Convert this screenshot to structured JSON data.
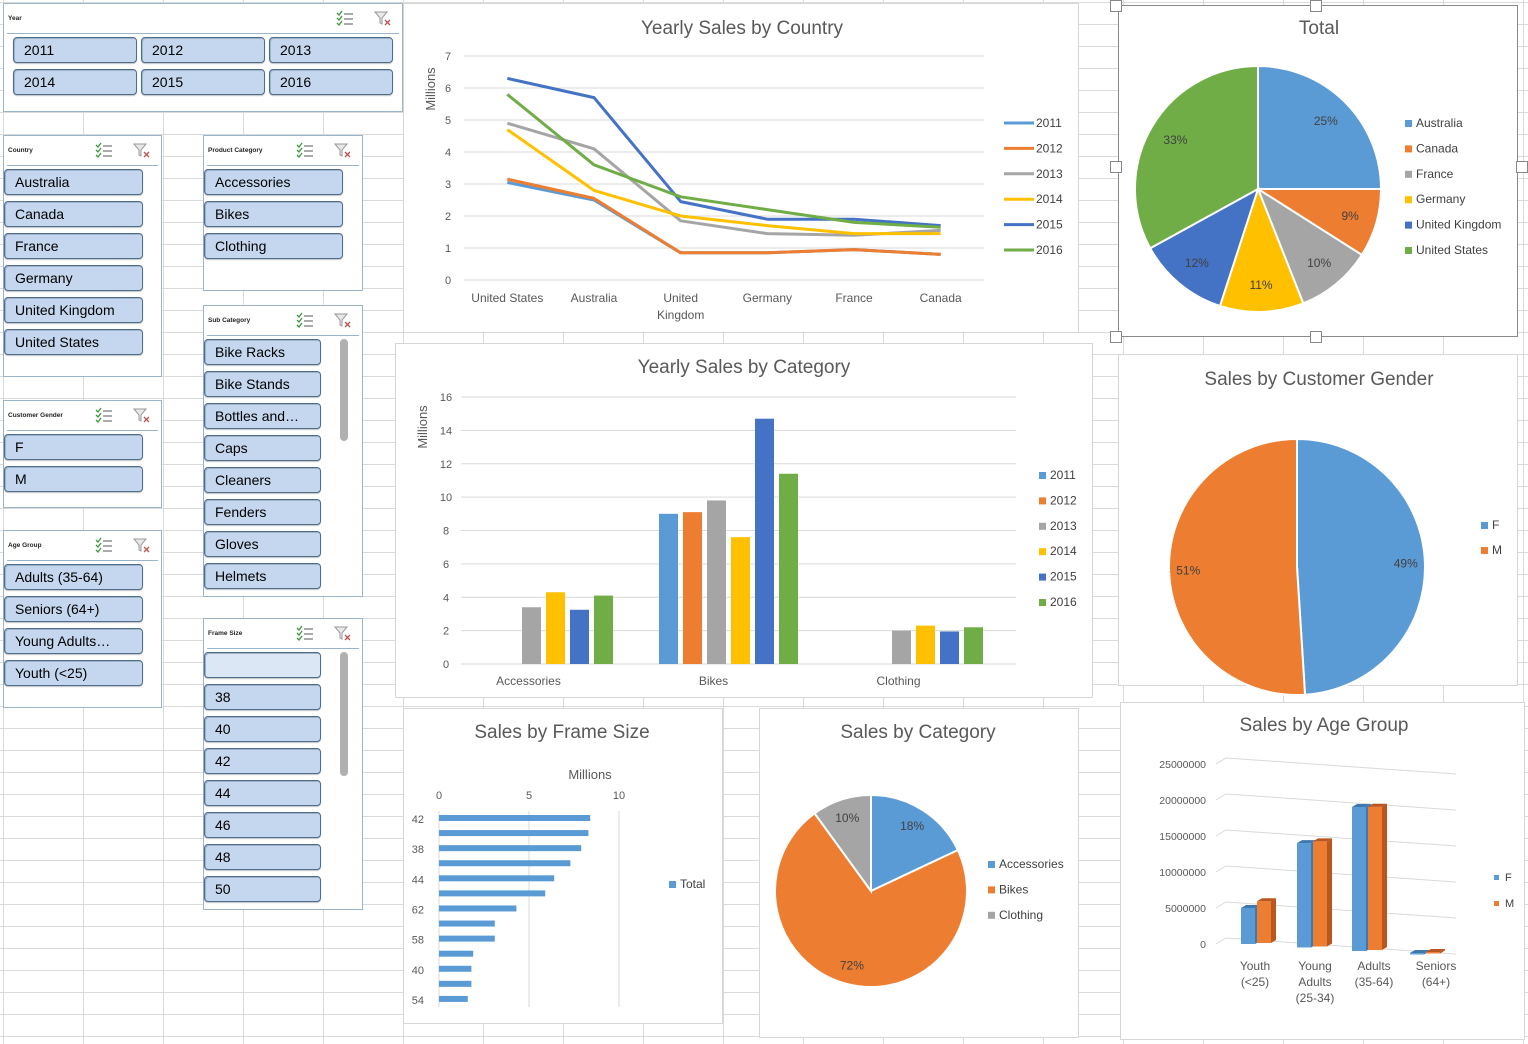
{
  "slicers": {
    "year": {
      "title": "Year",
      "items": [
        "2011",
        "2012",
        "2013",
        "2014",
        "2015",
        "2016"
      ]
    },
    "country": {
      "title": "Country",
      "items": [
        "Australia",
        "Canada",
        "France",
        "Germany",
        "United Kingdom",
        "United States"
      ]
    },
    "product_category": {
      "title": "Product Category",
      "items": [
        "Accessories",
        "Bikes",
        "Clothing"
      ]
    },
    "sub_category": {
      "title": "Sub Category",
      "items": [
        "Bike Racks",
        "Bike Stands",
        "Bottles and…",
        "Caps",
        "Cleaners",
        "Fenders",
        "Gloves",
        "Helmets"
      ]
    },
    "customer_gender": {
      "title": "Customer Gender",
      "items": [
        "F",
        "M"
      ]
    },
    "age_group": {
      "title": "Age Group",
      "items": [
        "Adults (35-64)",
        "Seniors (64+)",
        "Young Adults…",
        "Youth (<25)"
      ]
    },
    "frame_size": {
      "title": "Frame Size",
      "items": [
        "",
        "38",
        "40",
        "42",
        "44",
        "46",
        "48",
        "50"
      ]
    }
  },
  "colors": {
    "blue": "#5b9bd5",
    "orange": "#ed7d31",
    "gray": "#a5a5a5",
    "yellow": "#ffc000",
    "darkblue": "#4472c4",
    "green": "#70ad47",
    "slicer_button": "#c5d7ef",
    "slicer_border": "#4e6e8e"
  },
  "chart_data": [
    {
      "id": "yearly-sales-by-country",
      "type": "line",
      "title": "Yearly Sales by Country",
      "ylabel": "Millions",
      "ylim": [
        0,
        7
      ],
      "yticks": [
        "0",
        "1",
        "2",
        "3",
        "4",
        "5",
        "6",
        "7"
      ],
      "categories": [
        "United States",
        "Australia",
        "United Kingdom",
        "Germany",
        "France",
        "Canada"
      ],
      "category_labels": [
        [
          "United States"
        ],
        [
          "Australia"
        ],
        [
          "United",
          "Kingdom"
        ],
        [
          "Germany"
        ],
        [
          "France"
        ],
        [
          "Canada"
        ]
      ],
      "series": [
        {
          "name": "2011",
          "color": "#5b9bd5",
          "values": [
            3.05,
            2.5,
            0.85,
            0.85,
            0.95,
            0.8
          ]
        },
        {
          "name": "2012",
          "color": "#ed7d31",
          "values": [
            3.15,
            2.55,
            0.85,
            0.85,
            0.95,
            0.8
          ]
        },
        {
          "name": "2013",
          "color": "#a5a5a5",
          "values": [
            4.9,
            4.1,
            1.85,
            1.45,
            1.4,
            1.55
          ]
        },
        {
          "name": "2014",
          "color": "#ffc000",
          "values": [
            4.7,
            2.8,
            2.0,
            1.7,
            1.45,
            1.45
          ]
        },
        {
          "name": "2015",
          "color": "#4472c4",
          "values": [
            6.3,
            5.7,
            2.45,
            1.9,
            1.9,
            1.7
          ]
        },
        {
          "name": "2016",
          "color": "#70ad47",
          "values": [
            5.8,
            3.6,
            2.6,
            2.2,
            1.8,
            1.65
          ]
        }
      ],
      "legend": "right"
    },
    {
      "id": "total-by-country",
      "type": "pie",
      "title": "Total",
      "slices": [
        {
          "name": "Australia",
          "value": 25,
          "label": "25%",
          "color": "#5b9bd5"
        },
        {
          "name": "Canada",
          "value": 9,
          "label": "9%",
          "color": "#ed7d31"
        },
        {
          "name": "France",
          "value": 10,
          "label": "10%",
          "color": "#a5a5a5"
        },
        {
          "name": "Germany",
          "value": 11,
          "label": "11%",
          "color": "#ffc000"
        },
        {
          "name": "United Kingdom",
          "value": 12,
          "label": "12%",
          "color": "#4472c4"
        },
        {
          "name": "United States",
          "value": 33,
          "label": "33%",
          "color": "#70ad47"
        }
      ],
      "legend": "right"
    },
    {
      "id": "yearly-sales-by-category",
      "type": "bar",
      "title": "Yearly Sales by Category",
      "ylabel": "Millions",
      "ylim": [
        0,
        16
      ],
      "yticks": [
        "0",
        "2",
        "4",
        "6",
        "8",
        "10",
        "12",
        "14",
        "16"
      ],
      "categories": [
        "Accessories",
        "Bikes",
        "Clothing"
      ],
      "series": [
        {
          "name": "2011",
          "color": "#5b9bd5",
          "values": [
            null,
            9.0,
            null
          ]
        },
        {
          "name": "2012",
          "color": "#ed7d31",
          "values": [
            null,
            9.1,
            null
          ]
        },
        {
          "name": "2013",
          "color": "#a5a5a5",
          "values": [
            3.4,
            9.8,
            2.0
          ]
        },
        {
          "name": "2014",
          "color": "#ffc000",
          "values": [
            4.3,
            7.6,
            2.3
          ]
        },
        {
          "name": "2015",
          "color": "#4472c4",
          "values": [
            3.25,
            14.7,
            1.95
          ]
        },
        {
          "name": "2016",
          "color": "#70ad47",
          "values": [
            4.1,
            11.4,
            2.2
          ]
        }
      ],
      "legend": "right"
    },
    {
      "id": "sales-by-customer-gender",
      "type": "pie",
      "title": "Sales by Customer Gender",
      "slices": [
        {
          "name": "F",
          "value": 49,
          "label": "49%",
          "color": "#5b9bd5"
        },
        {
          "name": "M",
          "value": 51,
          "label": "51%",
          "color": "#ed7d31"
        }
      ],
      "legend": "right"
    },
    {
      "id": "sales-by-frame-size",
      "type": "bar",
      "orientation": "horizontal",
      "title": "Sales by Frame Size",
      "xlabel": "Millions",
      "xlim": [
        0,
        10
      ],
      "xticks": [
        "0",
        "5",
        "10"
      ],
      "categories": [
        "42",
        "",
        "38",
        "",
        "44",
        "",
        "62",
        "",
        "58",
        "",
        "40",
        "",
        "54"
      ],
      "values": [
        8.4,
        8.3,
        7.9,
        7.3,
        6.4,
        5.9,
        4.3,
        3.1,
        3.1,
        1.9,
        1.8,
        1.8,
        1.6
      ],
      "series_name": "Total",
      "color": "#5b9bd5",
      "legend": "right"
    },
    {
      "id": "sales-by-category",
      "type": "pie",
      "title": "Sales by Category",
      "slices": [
        {
          "name": "Accessories",
          "value": 18,
          "label": "18%",
          "color": "#5b9bd5"
        },
        {
          "name": "Bikes",
          "value": 72,
          "label": "72%",
          "color": "#ed7d31"
        },
        {
          "name": "Clothing",
          "value": 10,
          "label": "10%",
          "color": "#a5a5a5"
        }
      ],
      "legend": "right"
    },
    {
      "id": "sales-by-age-group",
      "type": "bar",
      "title": "Sales by Age Group",
      "ylim": [
        0,
        25000000
      ],
      "yticks": [
        "0",
        "5000000",
        "10000000",
        "15000000",
        "20000000",
        "25000000"
      ],
      "categories": [
        "Youth (<25)",
        "Young Adults (25-34)",
        "Adults (35-64)",
        "Seniors (64+)"
      ],
      "category_labels": [
        [
          "Youth",
          "(<25)"
        ],
        [
          "Young",
          "Adults",
          "(25-34)"
        ],
        [
          "Adults",
          "(35-64)"
        ],
        [
          "Seniors",
          "(64+)"
        ]
      ],
      "series": [
        {
          "name": "F",
          "color": "#5b9bd5",
          "values": [
            5000000,
            14500000,
            20000000,
            200000
          ]
        },
        {
          "name": "M",
          "color": "#ed7d31",
          "values": [
            5800000,
            14600000,
            19900000,
            200000
          ]
        }
      ],
      "legend": "right"
    }
  ]
}
